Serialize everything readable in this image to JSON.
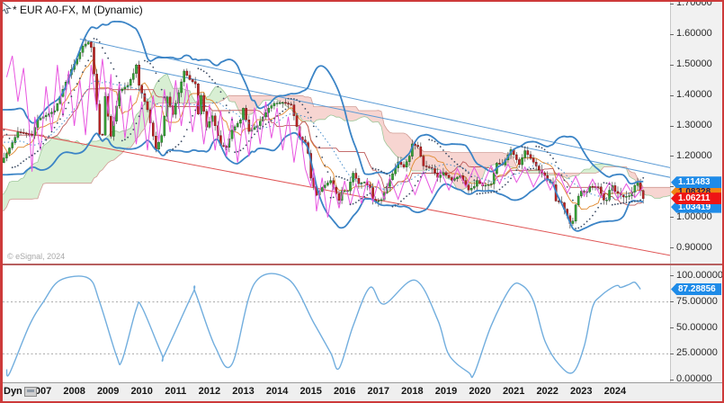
{
  "window": {
    "title": "* EUR A0-FX, M (Dynamic)",
    "copyright": "© eSignal, 2024",
    "border_color": "#cd3a3a"
  },
  "price_axis": {
    "ticks": [
      {
        "label": "1.70000",
        "value": 1.7
      },
      {
        "label": "1.60000",
        "value": 1.6
      },
      {
        "label": "1.50000",
        "value": 1.5
      },
      {
        "label": "1.40000",
        "value": 1.4
      },
      {
        "label": "1.30000",
        "value": 1.3
      },
      {
        "label": "1.20000",
        "value": 1.2
      },
      {
        "label": "1.10000",
        "value": 1.1
      },
      {
        "label": "1.00000",
        "value": 1.0
      },
      {
        "label": "0.90000",
        "value": 0.9
      }
    ],
    "badges": [
      {
        "text": "1.11483",
        "value": 1.11483,
        "bg": "#1e8be8",
        "fg": "#ffffff",
        "z": 3
      },
      {
        "text": "1.08328",
        "value": 1.08328,
        "bg": "#f08414",
        "fg": "#1c1c55",
        "z": 2
      },
      {
        "text": "1.06211",
        "value": 1.06211,
        "bg": "#ee1515",
        "fg": "#ffffff",
        "z": 5
      },
      {
        "text": "1.03419",
        "value": 1.03419,
        "bg": "#1e8be8",
        "fg": "#ffffff",
        "z": 1,
        "partially_hidden": true
      }
    ]
  },
  "oscillator_axis": {
    "ticks": [
      {
        "label": "100.00000",
        "value": 100
      },
      {
        "label": "75.00000",
        "value": 75
      },
      {
        "label": "50.00000",
        "value": 50
      },
      {
        "label": "25.00000",
        "value": 25
      },
      {
        "label": "0.00000",
        "value": 0
      }
    ],
    "badge": {
      "text": "87.28856",
      "value": 87.28856,
      "bg": "#1e8be8",
      "fg": "#ffffff"
    },
    "gridlines": [
      75,
      25
    ]
  },
  "time_axis": {
    "mode_label": "Dyn",
    "years": [
      "2007",
      "2008",
      "2009",
      "2010",
      "2011",
      "2012",
      "2013",
      "2014",
      "2015",
      "2016",
      "2017",
      "2018",
      "2019",
      "2020",
      "2021",
      "2022",
      "2023",
      "2024"
    ]
  },
  "chart_data": {
    "type": "candlestick",
    "symbol": "EUR A0-FX",
    "interval": "M",
    "title": "* EUR A0-FX, M (Dynamic)",
    "price_range_visible": [
      0.85,
      1.7
    ],
    "overlays": [
      "bollinger(20,2)",
      "ichimoku(9,26,52)",
      "parabolic-sar",
      "momentum-line"
    ],
    "close_anchors": [
      [
        "2002-01",
        0.865
      ],
      [
        "2002-07",
        0.99
      ],
      [
        "2002-12",
        1.05
      ],
      [
        "2003-05",
        1.18
      ],
      [
        "2003-08",
        1.09
      ],
      [
        "2003-12",
        1.26
      ],
      [
        "2004-04",
        1.198
      ],
      [
        "2004-10",
        1.27
      ],
      [
        "2004-12",
        1.365
      ],
      [
        "2005-03",
        1.29
      ],
      [
        "2005-06",
        1.21
      ],
      [
        "2005-11",
        1.18
      ],
      [
        "2006-01",
        1.21
      ],
      [
        "2006-05",
        1.28
      ],
      [
        "2006-10",
        1.27
      ],
      [
        "2006-12",
        1.32
      ],
      [
        "2007-03",
        1.335
      ],
      [
        "2007-06",
        1.35
      ],
      [
        "2007-09",
        1.42
      ],
      [
        "2007-11",
        1.468
      ],
      [
        "2008-02",
        1.52
      ],
      [
        "2008-04",
        1.562
      ],
      [
        "2008-06",
        1.575
      ],
      [
        "2008-07",
        1.558
      ],
      [
        "2008-08",
        1.47
      ],
      [
        "2008-10",
        1.273
      ],
      [
        "2008-11",
        1.27
      ],
      [
        "2008-12",
        1.397
      ],
      [
        "2009-02",
        1.266
      ],
      [
        "2009-05",
        1.415
      ],
      [
        "2009-08",
        1.433
      ],
      [
        "2009-10",
        1.472
      ],
      [
        "2009-11",
        1.5
      ],
      [
        "2009-12",
        1.433
      ],
      [
        "2010-03",
        1.353
      ],
      [
        "2010-06",
        1.224
      ],
      [
        "2010-08",
        1.268
      ],
      [
        "2010-10",
        1.395
      ],
      [
        "2010-12",
        1.338
      ],
      [
        "2011-04",
        1.48
      ],
      [
        "2011-06",
        1.452
      ],
      [
        "2011-08",
        1.438
      ],
      [
        "2011-09",
        1.339
      ],
      [
        "2011-10",
        1.4
      ],
      [
        "2011-12",
        1.296
      ],
      [
        "2012-02",
        1.333
      ],
      [
        "2012-05",
        1.236
      ],
      [
        "2012-07",
        1.23
      ],
      [
        "2012-09",
        1.286
      ],
      [
        "2012-12",
        1.32
      ],
      [
        "2013-01",
        1.358
      ],
      [
        "2013-03",
        1.282
      ],
      [
        "2013-06",
        1.301
      ],
      [
        "2013-10",
        1.358
      ],
      [
        "2013-12",
        1.374
      ],
      [
        "2014-03",
        1.377
      ],
      [
        "2014-06",
        1.369
      ],
      [
        "2014-09",
        1.263
      ],
      [
        "2014-11",
        1.245
      ],
      [
        "2014-12",
        1.21
      ],
      [
        "2015-01",
        1.129
      ],
      [
        "2015-03",
        1.073
      ],
      [
        "2015-05",
        1.098
      ],
      [
        "2015-08",
        1.121
      ],
      [
        "2015-11",
        1.056
      ],
      [
        "2015-12",
        1.086
      ],
      [
        "2016-02",
        1.087
      ],
      [
        "2016-04",
        1.145
      ],
      [
        "2016-06",
        1.111
      ],
      [
        "2016-08",
        1.116
      ],
      [
        "2016-10",
        1.098
      ],
      [
        "2016-11",
        1.059
      ],
      [
        "2016-12",
        1.052
      ],
      [
        "2017-02",
        1.058
      ],
      [
        "2017-05",
        1.124
      ],
      [
        "2017-08",
        1.182
      ],
      [
        "2017-10",
        1.165
      ],
      [
        "2017-12",
        1.201
      ],
      [
        "2018-01",
        1.241
      ],
      [
        "2018-03",
        1.232
      ],
      [
        "2018-05",
        1.169
      ],
      [
        "2018-08",
        1.16
      ],
      [
        "2018-10",
        1.131
      ],
      [
        "2018-12",
        1.147
      ],
      [
        "2019-03",
        1.122
      ],
      [
        "2019-06",
        1.137
      ],
      [
        "2019-09",
        1.09
      ],
      [
        "2019-11",
        1.102
      ],
      [
        "2019-12",
        1.121
      ],
      [
        "2020-02",
        1.103
      ],
      [
        "2020-05",
        1.11
      ],
      [
        "2020-07",
        1.178
      ],
      [
        "2020-09",
        1.172
      ],
      [
        "2020-12",
        1.222
      ],
      [
        "2021-03",
        1.173
      ],
      [
        "2021-05",
        1.219
      ],
      [
        "2021-08",
        1.181
      ],
      [
        "2021-10",
        1.156
      ],
      [
        "2021-12",
        1.137
      ],
      [
        "2022-01",
        1.123
      ],
      [
        "2022-03",
        1.107
      ],
      [
        "2022-04",
        1.054
      ],
      [
        "2022-06",
        1.048
      ],
      [
        "2022-08",
        1.006
      ],
      [
        "2022-09",
        0.98
      ],
      [
        "2022-10",
        0.988
      ],
      [
        "2022-11",
        1.041
      ],
      [
        "2022-12",
        1.07
      ],
      [
        "2023-01",
        1.086
      ],
      [
        "2023-03",
        1.084
      ],
      [
        "2023-04",
        1.102
      ],
      [
        "2023-07",
        1.1
      ],
      [
        "2023-09",
        1.057
      ],
      [
        "2023-10",
        1.057
      ],
      [
        "2023-11",
        1.089
      ],
      [
        "2023-12",
        1.104
      ],
      [
        "2024-01",
        1.085
      ],
      [
        "2024-02",
        1.08
      ],
      [
        "2024-04",
        1.067
      ],
      [
        "2024-06",
        1.071
      ],
      [
        "2024-07",
        1.083
      ],
      [
        "2024-08",
        1.105
      ],
      [
        "2024-09",
        1.113
      ],
      [
        "2024-10",
        1.088
      ],
      [
        "2024-11",
        1.062
      ]
    ],
    "trendlines": [
      {
        "name": "blue-resistance-1",
        "color": "#5b9bd5",
        "from": [
          "2008-03",
          1.585
        ],
        "to": [
          "2027-02",
          1.128
        ]
      },
      {
        "name": "blue-resistance-2",
        "color": "#5b9bd5",
        "from": [
          "2009-11",
          1.492
        ],
        "to": [
          "2027-02",
          1.098
        ]
      },
      {
        "name": "red-channel-line",
        "color": "#e05555",
        "from": [
          "2005-11",
          1.292
        ],
        "to": [
          "2027-02",
          0.845
        ]
      }
    ],
    "momentum_line_keypoints": [
      [
        0,
        1.46
      ],
      [
        2,
        1.53
      ],
      [
        4,
        1.38
      ],
      [
        6,
        1.49
      ],
      [
        8,
        1.3
      ],
      [
        9,
        1.15
      ],
      [
        10,
        1.33
      ],
      [
        12,
        1.22
      ],
      [
        14,
        1.43
      ],
      [
        16,
        1.28
      ],
      [
        18,
        1.5
      ],
      [
        20,
        1.33
      ],
      [
        22,
        1.48
      ],
      [
        24,
        1.3
      ],
      [
        26,
        1.45
      ],
      [
        28,
        1.27
      ],
      [
        30,
        1.5
      ],
      [
        32,
        1.35
      ],
      [
        34,
        1.52
      ],
      [
        36,
        1.34
      ],
      [
        37,
        1.47
      ],
      [
        38,
        1.3
      ],
      [
        40,
        1.44
      ],
      [
        42,
        1.26
      ],
      [
        44,
        1.4
      ],
      [
        46,
        1.24
      ],
      [
        48,
        1.38
      ],
      [
        50,
        1.22
      ],
      [
        52,
        1.4
      ],
      [
        54,
        1.25
      ],
      [
        56,
        1.42
      ],
      [
        58,
        1.28
      ],
      [
        60,
        1.45
      ],
      [
        62,
        1.3
      ],
      [
        64,
        1.44
      ],
      [
        66,
        1.28
      ],
      [
        68,
        1.4
      ],
      [
        70,
        1.24
      ],
      [
        72,
        1.37
      ],
      [
        74,
        1.22
      ],
      [
        76,
        1.35
      ],
      [
        78,
        1.2
      ],
      [
        80,
        1.33
      ],
      [
        82,
        1.18
      ],
      [
        84,
        1.32
      ],
      [
        86,
        1.2
      ],
      [
        88,
        1.36
      ],
      [
        90,
        1.24
      ],
      [
        92,
        1.38
      ],
      [
        94,
        1.26
      ],
      [
        96,
        1.36
      ],
      [
        98,
        1.22
      ],
      [
        100,
        1.33
      ],
      [
        102,
        1.18
      ],
      [
        104,
        1.3
      ],
      [
        106,
        1.16
      ],
      [
        108,
        1.1
      ],
      [
        109,
        1.16
      ],
      [
        110,
        1.02
      ],
      [
        112,
        1.13
      ],
      [
        114,
        1.0
      ],
      [
        116,
        1.11
      ],
      [
        118,
        1.03
      ],
      [
        120,
        1.12
      ],
      [
        122,
        1.04
      ],
      [
        124,
        1.11
      ],
      [
        126,
        1.045
      ],
      [
        128,
        1.125
      ],
      [
        130,
        1.05
      ],
      [
        132,
        1.12
      ],
      [
        134,
        1.06
      ],
      [
        136,
        1.13
      ],
      [
        139,
        1.06
      ],
      [
        142,
        1.14
      ],
      [
        145,
        1.075
      ],
      [
        148,
        1.15
      ],
      [
        151,
        1.08
      ],
      [
        154,
        1.155
      ],
      [
        157,
        1.09
      ],
      [
        160,
        1.16
      ],
      [
        163,
        1.1
      ],
      [
        166,
        1.165
      ],
      [
        169,
        1.105
      ],
      [
        172,
        1.17
      ],
      [
        175,
        1.11
      ],
      [
        178,
        1.175
      ],
      [
        181,
        1.115
      ],
      [
        184,
        1.165
      ],
      [
        187,
        1.1
      ],
      [
        190,
        1.155
      ],
      [
        193,
        1.09
      ],
      [
        196,
        1.145
      ],
      [
        199,
        1.08
      ],
      [
        202,
        1.135
      ],
      [
        205,
        1.07
      ],
      [
        208,
        1.125
      ],
      [
        211,
        1.065
      ],
      [
        214,
        1.115
      ],
      [
        217,
        1.06
      ],
      [
        220,
        1.11
      ],
      [
        223,
        1.065
      ],
      [
        226,
        1.1
      ]
    ],
    "oscillator": {
      "type": "line",
      "range": [
        0,
        100
      ],
      "last_value": 87.28856,
      "keypoints": [
        [
          0,
          10
        ],
        [
          1,
          6
        ],
        [
          8,
          52
        ],
        [
          13,
          75
        ],
        [
          19,
          96
        ],
        [
          29,
          98
        ],
        [
          33,
          75
        ],
        [
          39,
          23
        ],
        [
          41,
          19
        ],
        [
          46,
          68
        ],
        [
          48,
          70
        ],
        [
          55,
          25
        ],
        [
          56,
          24
        ],
        [
          66,
          83
        ],
        [
          67,
          84
        ],
        [
          74,
          32
        ],
        [
          80,
          15
        ],
        [
          88,
          93
        ],
        [
          100,
          97
        ],
        [
          109,
          55
        ],
        [
          115,
          26
        ],
        [
          118,
          11
        ],
        [
          123,
          52
        ],
        [
          129,
          89
        ],
        [
          134,
          73
        ],
        [
          145,
          96
        ],
        [
          153,
          58
        ],
        [
          157,
          24
        ],
        [
          164,
          7
        ],
        [
          166,
          6
        ],
        [
          172,
          52
        ],
        [
          179,
          89
        ],
        [
          183,
          91
        ],
        [
          187,
          76
        ],
        [
          191,
          38
        ],
        [
          196,
          15
        ],
        [
          201,
          7
        ],
        [
          205,
          32
        ],
        [
          208,
          70
        ],
        [
          211,
          81
        ],
        [
          215,
          89
        ],
        [
          217,
          91
        ],
        [
          218,
          89
        ],
        [
          221,
          92
        ],
        [
          223,
          94
        ],
        [
          225,
          87.3
        ]
      ]
    }
  }
}
